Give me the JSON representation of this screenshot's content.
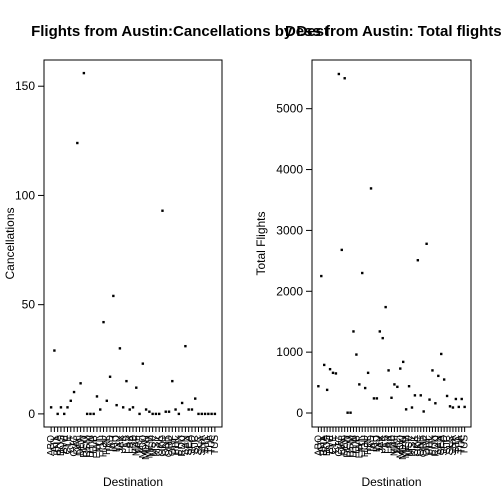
{
  "chart_data": [
    {
      "type": "scatter",
      "title": "Flights from Austin:Cancellations by Dest",
      "xlabel": "Destination",
      "ylabel": "Cancellations",
      "ylim": [
        -6,
        162
      ],
      "yticks": [
        0,
        50,
        100,
        150
      ],
      "grid": false,
      "legend": "none",
      "categories": [
        "ABQ",
        "ATL",
        "BNA",
        "BOS",
        "BWI",
        "CLE",
        "CLT",
        "CVG",
        "DAL",
        "DEN",
        "DFW",
        "DSM",
        "DTW",
        "ELP",
        "EWR",
        "FLL",
        "HOU",
        "HRL",
        "IAD",
        "IAH",
        "IND",
        "JAX",
        "JFK",
        "LAS",
        "LAX",
        "LBB",
        "MAF",
        "MCI",
        "MCO",
        "MDW",
        "MEM",
        "MSP",
        "MSY",
        "OAK",
        "OKC",
        "ONT",
        "ORD",
        "ORF",
        "PHL",
        "PHX",
        "RDU",
        "SAN",
        "SEA",
        "SFO",
        "SJC",
        "SLC",
        "SNA",
        "STL",
        "TPA",
        "TUL",
        "TUS"
      ],
      "values": [
        3,
        29,
        0,
        3,
        0,
        3,
        6,
        10,
        124,
        14,
        156,
        0,
        0,
        0,
        8,
        2,
        42,
        6,
        17,
        54,
        4,
        30,
        3,
        15,
        2,
        3,
        12,
        0,
        23,
        2,
        1,
        0,
        0,
        0,
        93,
        1,
        1,
        15,
        2,
        0,
        5,
        31,
        2,
        2,
        7,
        0,
        0,
        0,
        0,
        0,
        0
      ]
    },
    {
      "type": "scatter",
      "title": "Dess from Austin: Total flights to each Dest",
      "xlabel": "Destination",
      "ylabel": "Total Flights",
      "ylim": [
        -230,
        5800
      ],
      "yticks": [
        0,
        1000,
        2000,
        3000,
        4000,
        5000
      ],
      "grid": false,
      "legend": "none",
      "categories": [
        "ABQ",
        "ATL",
        "BNA",
        "BOS",
        "BWI",
        "CLE",
        "CLT",
        "CVG",
        "DAL",
        "DEN",
        "DFW",
        "DSM",
        "DTW",
        "ELP",
        "EWR",
        "FLL",
        "HOU",
        "HRL",
        "IAD",
        "IAH",
        "IND",
        "JAX",
        "JFK",
        "LAS",
        "LAX",
        "LBB",
        "MAF",
        "MCI",
        "MCO",
        "MDW",
        "MEM",
        "MSP",
        "MSY",
        "OAK",
        "OKC",
        "ONT",
        "ORD",
        "ORF",
        "PHL",
        "PHX",
        "RDU",
        "SAN",
        "SEA",
        "SFO",
        "SJC",
        "SLC",
        "SNA",
        "STL",
        "TPA",
        "TUL",
        "TUS"
      ],
      "values": [
        440,
        2250,
        790,
        380,
        720,
        660,
        650,
        5570,
        2680,
        5500,
        5,
        5,
        1340,
        960,
        470,
        2300,
        410,
        660,
        3690,
        240,
        240,
        1340,
        1230,
        1740,
        700,
        250,
        470,
        430,
        730,
        840,
        60,
        440,
        90,
        290,
        2510,
        290,
        25,
        2780,
        220,
        700,
        160,
        610,
        970,
        550,
        280,
        110,
        90,
        230,
        100,
        230,
        100
      ]
    }
  ]
}
